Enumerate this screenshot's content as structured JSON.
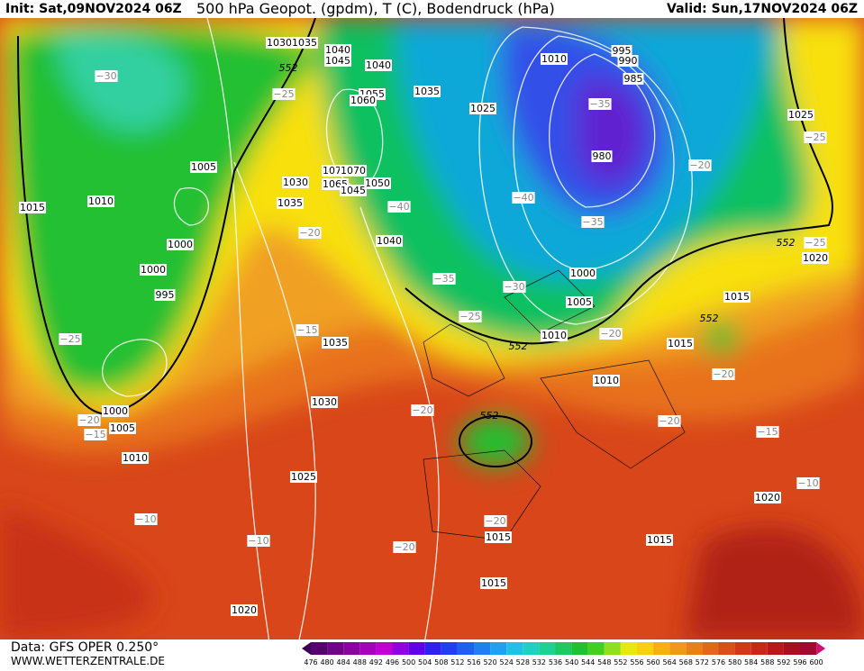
{
  "header": {
    "init": "Init: Sat,09NOV2024 06Z",
    "title": "500 hPa Geopot. (gpdm), T (C), Bodendruck (hPa)",
    "valid": "Valid: Sun,17NOV2024 06Z"
  },
  "footer": {
    "data": "Data: GFS OPER 0.250°",
    "site": "WWW.WETTERZENTRALE.DE"
  },
  "colorbar": {
    "labels": [
      "476",
      "480",
      "484",
      "488",
      "492",
      "496",
      "500",
      "504",
      "508",
      "512",
      "516",
      "520",
      "524",
      "528",
      "532",
      "536",
      "540",
      "544",
      "548",
      "552",
      "556",
      "560",
      "564",
      "568",
      "572",
      "576",
      "580",
      "584",
      "588",
      "592",
      "596",
      "600"
    ]
  },
  "map": {
    "isobar_labels": [
      "1030",
      "1035",
      "1040",
      "1045",
      "1040",
      "1010",
      "995",
      "990",
      "985",
      "1035",
      "1025",
      "1055",
      "1060",
      "980",
      "1005",
      "1075",
      "1070",
      "1030",
      "1065",
      "1050",
      "1045",
      "1010",
      "1015",
      "1035",
      "1040",
      "1000",
      "1000",
      "995",
      "1000",
      "1005",
      "1010",
      "1015",
      "1015",
      "1035",
      "1030",
      "1010",
      "1000",
      "1005",
      "1010",
      "1025",
      "1020",
      "1015",
      "1015",
      "1015",
      "1020",
      "1025",
      "1020"
    ],
    "temperature_labels": [
      "−30",
      "−25",
      "−35",
      "−20",
      "−25",
      "−40",
      "−20",
      "−40",
      "−35",
      "−25",
      "−35",
      "−30",
      "−25",
      "−25",
      "−15",
      "−20",
      "−20",
      "−20",
      "−20",
      "−20",
      "−15",
      "−15",
      "−10",
      "−10",
      "−20",
      "−10",
      "−20"
    ],
    "height_labels": [
      "552",
      "552",
      "552",
      "552",
      "552"
    ]
  }
}
